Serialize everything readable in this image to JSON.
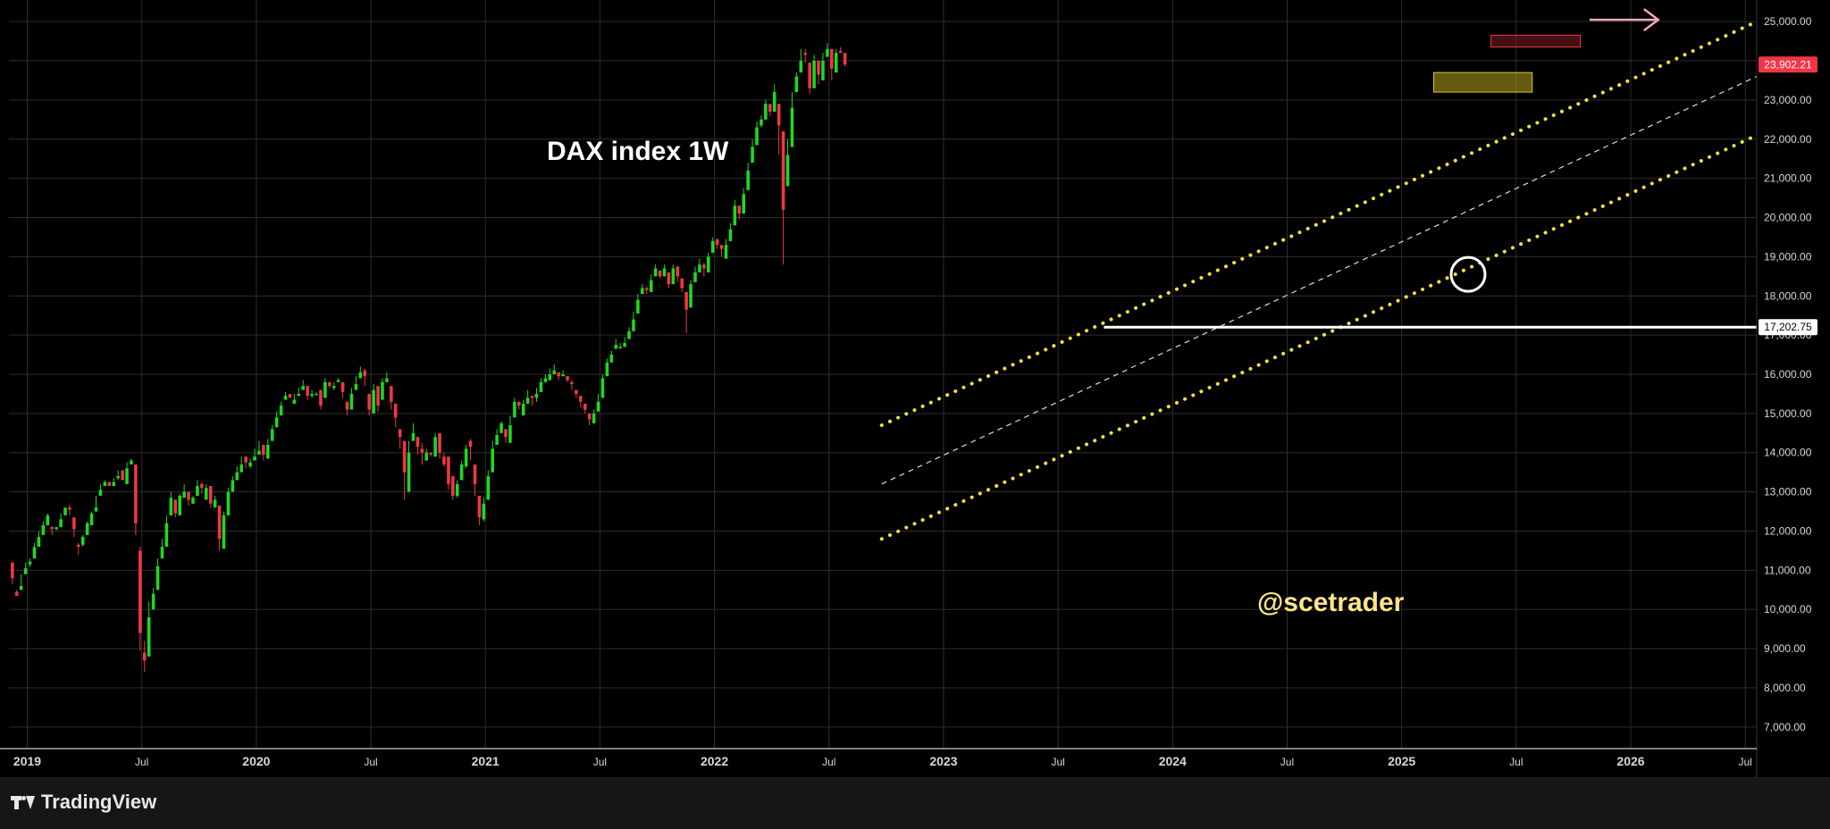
{
  "chart_data": {
    "type": "candlestick",
    "title": "DAX index 1W",
    "watermark": "@scetrader",
    "price_ticks": [
      7000,
      8000,
      9000,
      10000,
      11000,
      12000,
      13000,
      14000,
      15000,
      16000,
      17000,
      18000,
      19000,
      20000,
      21000,
      22000,
      23000,
      24000,
      25000
    ],
    "time_ticks": [
      "2019",
      "Jul",
      "2020",
      "Jul",
      "2021",
      "Jul",
      "2022",
      "Jul",
      "2023",
      "Jul",
      "2024",
      "Jul",
      "2025",
      "Jul",
      "2026",
      "Jul"
    ],
    "time_tick_dates": [
      2019.0,
      2019.5,
      2020.0,
      2020.5,
      2021.0,
      2021.5,
      2022.0,
      2022.5,
      2023.0,
      2023.5,
      2024.0,
      2024.5,
      2025.0,
      2025.5,
      2026.0,
      2026.5
    ],
    "x_range": [
      2018.92,
      2026.55
    ],
    "y_range": [
      6450,
      25550
    ],
    "scale": "linear",
    "grid": true,
    "price_labels": [
      {
        "value": 23902.21,
        "text": "23,902.21",
        "bg": "#f23645",
        "fg": "#ffffff"
      },
      {
        "value": 17202.75,
        "text": "17,202.75",
        "bg": "#ffffff",
        "fg": "#000000"
      }
    ],
    "horizontal_level": {
      "value": 17202.75,
      "from": 2023.7
    },
    "channel": {
      "upper": [
        [
          2022.73,
          14700
        ],
        [
          2026.55,
          25000
        ]
      ],
      "middle": [
        [
          2022.73,
          13200
        ],
        [
          2026.55,
          23600
        ]
      ],
      "lower": [
        [
          2022.73,
          11800
        ],
        [
          2026.55,
          22100
        ]
      ]
    },
    "zones": [
      {
        "x": [
          2025.14,
          2025.57
        ],
        "y": [
          23200,
          23700
        ],
        "kind": "support-box"
      },
      {
        "x": [
          2025.39,
          2025.78
        ],
        "y": [
          24350,
          24650
        ],
        "kind": "resistance-box"
      }
    ],
    "circle_marker": {
      "x": 2025.29,
      "y": 18550
    },
    "target_arrow": {
      "x": [
        2025.82,
        2026.12
      ],
      "y": 25000
    },
    "colors": {
      "up": "#1fd91f",
      "down": "#f23645",
      "grid": "#2e2e2e",
      "channel": "#f3e13c",
      "box_yellow": "#b5a521",
      "box_red": "#8c1e26",
      "arrow": "#f4a6b8"
    },
    "candles_weekly": [
      [
        11200,
        11150,
        10800,
        10650
      ],
      [
        10450,
        10460,
        10350,
        10500
      ],
      [
        10500,
        10620,
        10600,
        10900
      ],
      [
        10900,
        10940,
        11050,
        11200
      ],
      [
        11150,
        11080,
        11220,
        11300
      ],
      [
        11300,
        11340,
        11590,
        11700
      ],
      [
        11600,
        11650,
        11850,
        12000
      ],
      [
        11900,
        12050,
        12150,
        12250
      ],
      [
        12150,
        12230,
        12400,
        12450
      ],
      [
        12100,
        12120,
        12050,
        11900
      ],
      [
        12050,
        12020,
        12100,
        12080
      ],
      [
        12100,
        12150,
        12300,
        12450
      ],
      [
        12400,
        12500,
        12600,
        12600
      ],
      [
        12600,
        12680,
        12550,
        12400
      ],
      [
        12350,
        12300,
        12050,
        11850
      ],
      [
        11650,
        11700,
        11600,
        11400
      ],
      [
        11650,
        11600,
        11850,
        11900
      ],
      [
        11900,
        11950,
        12200,
        12250
      ],
      [
        12150,
        12250,
        12450,
        12500
      ],
      [
        12500,
        12520,
        12600,
        12900
      ],
      [
        12900,
        12900,
        13050,
        13200
      ],
      [
        13150,
        13200,
        13250,
        13300
      ],
      [
        13250,
        13200,
        13150,
        13250
      ],
      [
        13150,
        13230,
        13250,
        13350
      ],
      [
        13350,
        13300,
        13400,
        13550
      ],
      [
        13550,
        13500,
        13300,
        13400
      ],
      [
        13200,
        13300,
        13600,
        13750
      ],
      [
        13700,
        13750,
        13800,
        13850
      ],
      [
        13700,
        13650,
        12200,
        11900
      ],
      [
        11500,
        11600,
        9400,
        8950
      ],
      [
        8900,
        9200,
        8700,
        8400
      ],
      [
        8800,
        9100,
        9800,
        10200
      ],
      [
        10000,
        10150,
        10400,
        10550
      ],
      [
        10500,
        10600,
        11100,
        11300
      ],
      [
        11300,
        11400,
        11600,
        11800
      ],
      [
        11600,
        11700,
        12200,
        12400
      ],
      [
        12400,
        12500,
        12850,
        13000
      ],
      [
        12800,
        12750,
        12450,
        12350
      ],
      [
        12400,
        12520,
        12900,
        12950
      ],
      [
        12850,
        12950,
        13000,
        13200
      ],
      [
        13000,
        12900,
        12800,
        12650
      ],
      [
        12700,
        12800,
        12850,
        12900
      ],
      [
        12900,
        12950,
        13150,
        13300
      ],
      [
        13200,
        13250,
        13100,
        12950
      ],
      [
        12800,
        12950,
        13100,
        13200
      ],
      [
        13150,
        13000,
        12700,
        12600
      ],
      [
        12600,
        12650,
        12800,
        12900
      ],
      [
        12650,
        12400,
        11800,
        11500
      ],
      [
        11550,
        11600,
        12400,
        12500
      ],
      [
        12400,
        12500,
        13000,
        13100
      ],
      [
        13000,
        13050,
        13300,
        13400
      ],
      [
        13300,
        13350,
        13500,
        13650
      ],
      [
        13500,
        13550,
        13700,
        13900
      ],
      [
        13900,
        13850,
        13750,
        13600
      ],
      [
        13650,
        13600,
        13750,
        13850
      ],
      [
        13800,
        13800,
        13900,
        14100
      ],
      [
        13950,
        14000,
        14050,
        14300
      ],
      [
        14200,
        14050,
        13950,
        13800
      ],
      [
        13850,
        13950,
        14200,
        14350
      ],
      [
        14300,
        14500,
        14600,
        14700
      ],
      [
        14650,
        14650,
        14900,
        15050
      ],
      [
        14950,
        15000,
        15200,
        15300
      ],
      [
        15350,
        15350,
        15450,
        15550
      ],
      [
        15500,
        15400,
        15400,
        15400
      ],
      [
        15250,
        15350,
        15350,
        15500
      ],
      [
        15450,
        15500,
        15500,
        15650
      ],
      [
        15600,
        15650,
        15700,
        15850
      ],
      [
        15700,
        15600,
        15450,
        15350
      ],
      [
        15450,
        15600,
        15500,
        15400
      ],
      [
        15500,
        15500,
        15500,
        15550
      ],
      [
        15600,
        15550,
        15200,
        15100
      ],
      [
        15400,
        15400,
        15800,
        15900
      ],
      [
        15800,
        15800,
        15700,
        15650
      ],
      [
        15650,
        15600,
        15700,
        15800
      ],
      [
        15800,
        15850,
        15850,
        15900
      ],
      [
        15800,
        15750,
        15550,
        15400
      ],
      [
        15300,
        15250,
        15100,
        14950
      ],
      [
        15100,
        15200,
        15500,
        15650
      ],
      [
        15600,
        15700,
        15750,
        15950
      ],
      [
        15900,
        16000,
        16050,
        16200
      ],
      [
        16100,
        16150,
        15950,
        15700
      ],
      [
        15500,
        15350,
        15100,
        14950
      ],
      [
        15000,
        15200,
        15600,
        15750
      ],
      [
        15700,
        15650,
        15200,
        15050
      ],
      [
        15350,
        15400,
        15800,
        15900
      ],
      [
        15800,
        15900,
        15900,
        16050
      ],
      [
        15700,
        15600,
        15300,
        15100
      ],
      [
        15250,
        15150,
        14900,
        14650
      ],
      [
        14600,
        14550,
        14400,
        14100
      ],
      [
        14300,
        14100,
        13500,
        12800
      ],
      [
        13000,
        13100,
        14000,
        14300
      ],
      [
        14300,
        14350,
        14500,
        14750
      ],
      [
        14400,
        14300,
        14150,
        13950
      ],
      [
        14100,
        14250,
        14000,
        13700
      ],
      [
        13800,
        13900,
        14000,
        14100
      ],
      [
        14000,
        13950,
        13950,
        13900
      ],
      [
        13900,
        13950,
        14400,
        14500
      ],
      [
        14500,
        14450,
        14000,
        13850
      ],
      [
        13900,
        14000,
        13700,
        13650
      ],
      [
        13900,
        13750,
        13200,
        13050
      ],
      [
        13400,
        13350,
        12900,
        12800
      ],
      [
        12900,
        12850,
        13200,
        13300
      ],
      [
        13300,
        13350,
        13700,
        13800
      ],
      [
        13650,
        13600,
        14100,
        14200
      ],
      [
        14300,
        14350,
        14150,
        13800
      ],
      [
        13700,
        13600,
        13200,
        12900
      ],
      [
        12900,
        12800,
        12350,
        12150
      ],
      [
        12300,
        12250,
        12700,
        12850
      ],
      [
        12800,
        12900,
        13400,
        13550
      ],
      [
        13500,
        13600,
        14100,
        14300
      ],
      [
        14200,
        14350,
        14450,
        14600
      ],
      [
        14500,
        14600,
        14750,
        14800
      ],
      [
        14600,
        14500,
        14400,
        14250
      ],
      [
        14250,
        14300,
        14700,
        14950
      ],
      [
        14900,
        15000,
        15300,
        15400
      ],
      [
        15300,
        15250,
        15200,
        15100
      ],
      [
        14950,
        15000,
        15250,
        15350
      ],
      [
        15250,
        15300,
        15400,
        15600
      ],
      [
        15450,
        15350,
        15400,
        15200
      ],
      [
        15400,
        15300,
        15500,
        15650
      ],
      [
        15550,
        15600,
        15800,
        15900
      ],
      [
        15800,
        15850,
        15900,
        16000
      ],
      [
        15850,
        15900,
        16000,
        16150
      ],
      [
        16000,
        16050,
        16100,
        16250
      ],
      [
        16050,
        16000,
        15950,
        15850
      ],
      [
        15950,
        16000,
        16000,
        16100
      ],
      [
        15950,
        15900,
        15850,
        15800
      ],
      [
        15800,
        15850,
        15750,
        15600
      ],
      [
        15600,
        15550,
        15500,
        15400
      ],
      [
        15450,
        15400,
        15300,
        15150
      ],
      [
        15250,
        15200,
        15100,
        15000
      ],
      [
        15000,
        14950,
        14850,
        14700
      ],
      [
        14750,
        14800,
        15000,
        15100
      ],
      [
        15050,
        15100,
        15300,
        15500
      ],
      [
        15400,
        15500,
        15900,
        16000
      ],
      [
        15950,
        16000,
        16300,
        16400
      ],
      [
        16300,
        16400,
        16500,
        16600
      ],
      [
        16650,
        16700,
        16750,
        16900
      ],
      [
        16700,
        16650,
        16700,
        16800
      ],
      [
        16700,
        16750,
        16800,
        16950
      ],
      [
        16900,
        16950,
        17100,
        17200
      ],
      [
        17100,
        17150,
        17400,
        17600
      ],
      [
        17550,
        17700,
        17900,
        18050
      ],
      [
        18050,
        18100,
        18200,
        18300
      ],
      [
        18200,
        18250,
        18150,
        18050
      ],
      [
        18100,
        18200,
        18400,
        18550
      ],
      [
        18500,
        18600,
        18700,
        18800
      ],
      [
        18650,
        18600,
        18500,
        18450
      ],
      [
        18500,
        18500,
        18700,
        18800
      ],
      [
        18600,
        18500,
        18300,
        18200
      ],
      [
        18300,
        18400,
        18700,
        18800
      ],
      [
        18750,
        18700,
        18500,
        18350
      ],
      [
        18450,
        18450,
        18200,
        18100
      ],
      [
        18100,
        18000,
        17650,
        17050
      ],
      [
        17700,
        17800,
        18300,
        18400
      ],
      [
        18350,
        18400,
        18600,
        18750
      ],
      [
        18600,
        18650,
        18800,
        18950
      ],
      [
        18800,
        18850,
        18700,
        18500
      ],
      [
        18600,
        18700,
        19000,
        19100
      ],
      [
        19100,
        19200,
        19400,
        19500
      ],
      [
        19450,
        19400,
        19300,
        19200
      ],
      [
        19300,
        19250,
        19200,
        19000
      ],
      [
        18950,
        19050,
        19300,
        19450
      ],
      [
        19400,
        19500,
        19700,
        19850
      ],
      [
        19800,
        19900,
        20300,
        20450
      ],
      [
        20300,
        20250,
        20100,
        19950
      ],
      [
        20100,
        20200,
        20600,
        20750
      ],
      [
        20700,
        20900,
        21200,
        21400
      ],
      [
        21400,
        21500,
        21800,
        22000
      ],
      [
        21850,
        21950,
        22300,
        22450
      ],
      [
        22350,
        22300,
        22500,
        22600
      ],
      [
        22500,
        22600,
        22900,
        23000
      ],
      [
        22900,
        22800,
        22700,
        22600
      ],
      [
        22700,
        22800,
        23200,
        23400
      ],
      [
        22900,
        22700,
        22350,
        21600
      ],
      [
        22200,
        21800,
        20200,
        18800
      ],
      [
        20800,
        20900,
        21600,
        22000
      ],
      [
        21800,
        22000,
        22800,
        23200
      ],
      [
        23200,
        23350,
        23600,
        23700
      ],
      [
        23700,
        23800,
        24000,
        24300
      ],
      [
        24200,
        24300,
        24150,
        23950
      ],
      [
        23950,
        23850,
        23300,
        23150
      ],
      [
        23300,
        23400,
        24000,
        24150
      ],
      [
        24000,
        23950,
        23650,
        23400
      ],
      [
        23500,
        23600,
        24000,
        24200
      ],
      [
        24100,
        24100,
        24300,
        24450
      ],
      [
        24300,
        24200,
        23800,
        23500
      ],
      [
        23700,
        23800,
        24200,
        24300
      ],
      [
        24250,
        24250,
        24200,
        24350
      ],
      [
        24200,
        24100,
        23902.21,
        23850
      ]
    ]
  }
}
